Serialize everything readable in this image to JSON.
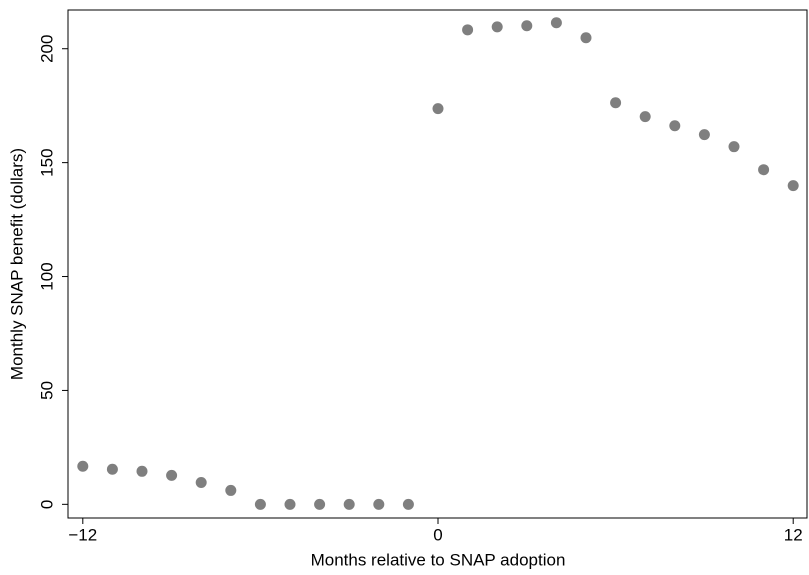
{
  "chart_data": {
    "type": "scatter",
    "xlabel": "Months relative to SNAP adoption",
    "ylabel": "Monthly SNAP benefit (dollars)",
    "x": [
      -12,
      -11,
      -10,
      -9,
      -8,
      -7,
      -6,
      -5,
      -4,
      -3,
      -2,
      -1,
      0,
      1,
      2,
      3,
      4,
      5,
      6,
      7,
      8,
      9,
      10,
      11,
      12
    ],
    "values": [
      16.7,
      15.4,
      14.5,
      12.7,
      9.6,
      6.1,
      0,
      0,
      0,
      0,
      0,
      0,
      173.7,
      208.3,
      209.6,
      210.1,
      211.4,
      204.8,
      176.3,
      170.2,
      166.2,
      162.3,
      157,
      146.9,
      139.9
    ],
    "color": "#7f7f7f",
    "xlim": [
      -12.5,
      12.5
    ],
    "xticks": [
      {
        "value": -12,
        "label": "−12"
      },
      0,
      12
    ],
    "ylim": [
      -6,
      217
    ],
    "yticks": [
      0,
      50,
      100,
      150,
      200
    ]
  }
}
